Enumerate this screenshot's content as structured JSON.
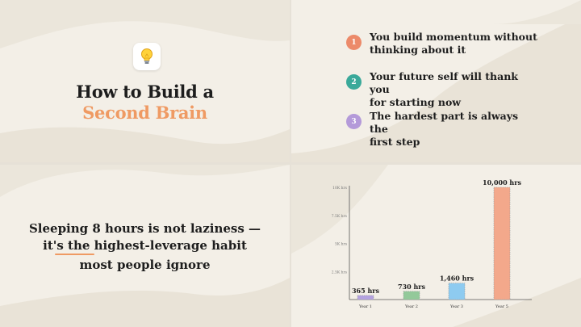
{
  "panel1": {
    "icon": "lightbulb-icon",
    "title_line1": "How to Build a",
    "title_line2": "Second Brain"
  },
  "panel2": {
    "points": [
      {
        "number": "1",
        "text_line1": "You build momentum without",
        "text_line2": "thinking about it",
        "color": "#ec8a6a"
      },
      {
        "number": "2",
        "text_line1": "Your future self will thank you",
        "text_line2": "for starting now",
        "color": "#3aa99a"
      },
      {
        "number": "3",
        "text_line1": "The hardest part is always the",
        "text_line2": "first step",
        "color": "#b49ad9"
      }
    ]
  },
  "panel3": {
    "line1": "Sleeping 8 hours is not laziness —",
    "line2": "it's the highest-leverage habit",
    "line3": "most people ignore"
  },
  "chart_data": {
    "type": "bar",
    "categories": [
      "Year 1",
      "Year 2",
      "Year 3",
      "Year 5"
    ],
    "values": [
      365,
      730,
      1460,
      10000
    ],
    "data_labels": [
      "365 hrs",
      "730 hrs",
      "1,460 hrs",
      "10,000 hrs"
    ],
    "colors": [
      "#b4a2e0",
      "#93c99a",
      "#8ecbf0",
      "#f3a88b"
    ],
    "ytick_labels": [
      "10K hrs",
      "7.5K hrs",
      "5K hrs",
      "2.5K hrs"
    ],
    "ytick_values": [
      10000,
      7500,
      5000,
      2500
    ],
    "ylim": [
      0,
      10000
    ],
    "grid": false,
    "title": "",
    "xlabel": "",
    "ylabel": ""
  }
}
